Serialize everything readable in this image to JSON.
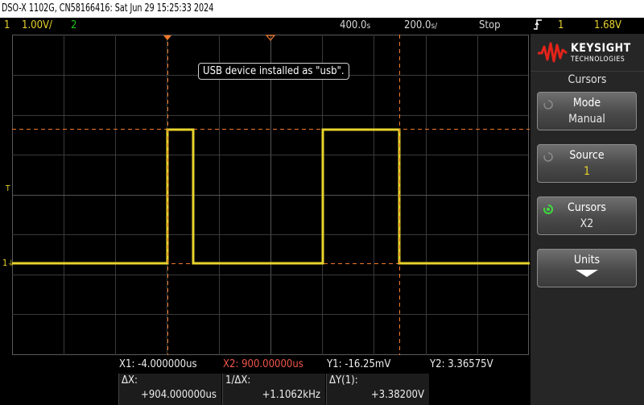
{
  "titlebar": {
    "text": "DSO-X 1102G, CN58166416: Sat Jun 29 15:25:33 2024"
  },
  "status": {
    "ch1_num": "1",
    "ch1_scale": "1.00V/",
    "ch2_num": "2",
    "time_ref": "400.0",
    "time_ref_unit": "s",
    "time_scale": "200.0",
    "time_scale_unit": "s/",
    "run_state": "Stop",
    "trigger_icon": "rising-edge-icon",
    "trigger_source": "1",
    "trigger_level": "1.68V"
  },
  "grid": {
    "trigger_marker": "T",
    "ch1_marker": "1"
  },
  "popup": {
    "text": "USB device installed as \"usb\"."
  },
  "panel": {
    "brand": "KEYSIGHT",
    "brand_sub": "TECHNOLOGIES",
    "title": "Cursors",
    "softkeys": [
      {
        "label": "Mode",
        "value": "Manual"
      },
      {
        "label": "Source",
        "value": "1"
      },
      {
        "label": "Cursors",
        "value": "X2"
      },
      {
        "label": "Units"
      }
    ]
  },
  "measurements": {
    "x1": "X1:  -4.000000us",
    "x2": "X2:  900.00000us",
    "y1": "Y1:  -16.25mV",
    "y2": "Y2:  3.36575V",
    "dx_label": "ΔX:",
    "dx_value": "+904.000000us",
    "inv_dx_label": "1/ΔX:",
    "inv_dx_value": "+1.1062kHz",
    "dy_label": "ΔY(1):",
    "dy_value": "+3.38200V"
  },
  "colors": {
    "ch1": "#e8d32c",
    "ch2": "#1ec81e",
    "cursor": "#f0782a",
    "panel": "#262626"
  }
}
